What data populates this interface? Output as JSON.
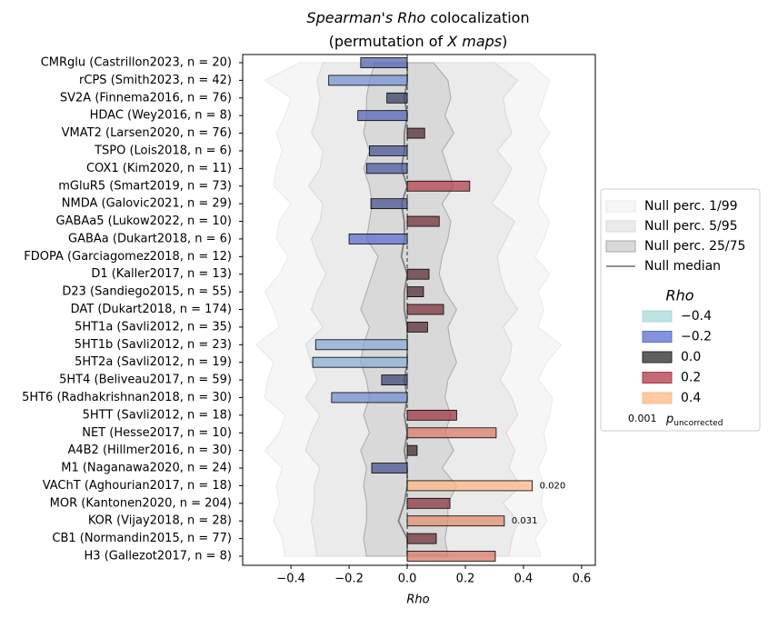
{
  "chart_data": {
    "type": "bar",
    "orientation": "horizontal",
    "title": {
      "line1": [
        {
          "text": "Spearman's Rho",
          "italic": true
        },
        {
          "text": " colocalization",
          "italic": false
        }
      ],
      "line2": [
        {
          "text": "(permutation of ",
          "italic": false
        },
        {
          "text": "X maps",
          "italic": true
        },
        {
          "text": ")",
          "italic": false
        }
      ]
    },
    "xlabel": "Rho",
    "categories": [
      "CMRglu (Castrillon2023, n = 20)",
      "rCPS (Smith2023, n = 42)",
      "SV2A (Finnema2016, n = 76)",
      "HDAC (Wey2016, n = 8)",
      "VMAT2 (Larsen2020, n = 76)",
      "TSPO (Lois2018, n = 6)",
      "COX1 (Kim2020, n = 11)",
      "mGluR5 (Smart2019, n = 73)",
      "NMDA (Galovic2021, n = 29)",
      "GABAa5 (Lukow2022, n = 10)",
      "GABAa (Dukart2018, n = 6)",
      "FDOPA (Garciagomez2018, n = 12)",
      "D1 (Kaller2017, n = 13)",
      "D23 (Sandiego2015, n = 55)",
      "DAT (Dukart2018, n = 174)",
      "5HT1a (Savli2012, n = 35)",
      "5HT1b (Savli2012, n = 23)",
      "5HT2a (Savli2012, n = 19)",
      "5HT4 (Beliveau2017, n = 59)",
      "5HT6 (Radhakrishnan2018, n = 30)",
      "5HTT (Savli2012, n = 18)",
      "NET (Hesse2017, n = 10)",
      "A4B2 (Hillmer2016, n = 30)",
      "M1 (Naganawa2020, n = 24)",
      "VAChT (Aghourian2017, n = 18)",
      "MOR (Kantonen2020, n = 204)",
      "KOR (Vijay2018, n = 28)",
      "CB1 (Normandin2015, n = 77)",
      "H3 (Gallezot2017, n = 8)"
    ],
    "values": [
      -0.16,
      -0.27,
      -0.07,
      -0.17,
      0.06,
      -0.13,
      -0.14,
      0.215,
      -0.125,
      0.11,
      -0.2,
      0.0,
      0.075,
      0.056,
      0.125,
      0.07,
      -0.315,
      -0.325,
      -0.088,
      -0.26,
      0.17,
      0.306,
      0.034,
      -0.122,
      0.43,
      0.147,
      0.334,
      0.1,
      0.303
    ],
    "p_value_labels": [
      null,
      null,
      null,
      null,
      null,
      null,
      null,
      null,
      null,
      null,
      null,
      null,
      null,
      null,
      null,
      null,
      null,
      null,
      null,
      null,
      null,
      null,
      null,
      null,
      "0.020",
      null,
      "0.031",
      null,
      null
    ],
    "p_values": [
      null,
      null,
      null,
      null,
      null,
      null,
      null,
      null,
      null,
      null,
      null,
      null,
      null,
      null,
      null,
      null,
      null,
      null,
      null,
      null,
      null,
      null,
      null,
      null,
      0.02,
      null,
      0.031,
      null,
      null
    ],
    "xlim": [
      -0.566,
      0.647
    ],
    "xticks": [
      {
        "value": -0.4,
        "label": "−0.4"
      },
      {
        "value": -0.2,
        "label": "−0.2"
      },
      {
        "value": 0.0,
        "label": "0.0"
      },
      0.2,
      0.4,
      0.6
    ],
    "null_bands": [
      {
        "name": "Null perc. 1/99",
        "color": "#f6f6f6",
        "edge": "#e8e8e8",
        "lower": [
          -0.37,
          -0.49,
          -0.4,
          -0.42,
          -0.45,
          -0.43,
          -0.45,
          -0.46,
          -0.4,
          -0.44,
          -0.45,
          -0.41,
          -0.44,
          -0.49,
          -0.46,
          -0.44,
          -0.52,
          -0.46,
          -0.48,
          -0.49,
          -0.42,
          -0.44,
          -0.49,
          -0.43,
          -0.45,
          -0.44,
          -0.46,
          -0.43,
          -0.42
        ],
        "upper": [
          0.42,
          0.49,
          0.47,
          0.45,
          0.49,
          0.45,
          0.48,
          0.46,
          0.45,
          0.49,
          0.47,
          0.44,
          0.49,
          0.45,
          0.47,
          0.45,
          0.53,
          0.48,
          0.45,
          0.5,
          0.49,
          0.47,
          0.48,
          0.45,
          0.47,
          0.46,
          0.48,
          0.44,
          0.46
        ]
      },
      {
        "name": "Null perc. 5/95",
        "color": "#ebebeb",
        "edge": "#d8d8d8",
        "lower": [
          -0.29,
          -0.31,
          -0.3,
          -0.31,
          -0.33,
          -0.29,
          -0.3,
          -0.34,
          -0.29,
          -0.3,
          -0.33,
          -0.31,
          -0.28,
          -0.31,
          -0.33,
          -0.29,
          -0.35,
          -0.33,
          -0.31,
          -0.35,
          -0.3,
          -0.33,
          -0.35,
          -0.3,
          -0.32,
          -0.32,
          -0.33,
          -0.32,
          -0.31
        ],
        "upper": [
          0.3,
          0.38,
          0.33,
          0.34,
          0.36,
          0.31,
          0.36,
          0.33,
          0.29,
          0.37,
          0.34,
          0.31,
          0.32,
          0.34,
          0.38,
          0.33,
          0.36,
          0.35,
          0.32,
          0.36,
          0.38,
          0.34,
          0.37,
          0.35,
          0.39,
          0.33,
          0.38,
          0.36,
          0.35
        ]
      },
      {
        "name": "Null perc. 25/75",
        "color": "#d9d9d9",
        "edge": "#a8a8a8",
        "lower": [
          -0.11,
          -0.13,
          -0.14,
          -0.14,
          -0.15,
          -0.13,
          -0.15,
          -0.13,
          -0.12,
          -0.13,
          -0.14,
          -0.1,
          -0.12,
          -0.14,
          -0.16,
          -0.13,
          -0.15,
          -0.16,
          -0.14,
          -0.13,
          -0.15,
          -0.13,
          -0.16,
          -0.14,
          -0.15,
          -0.14,
          -0.14,
          -0.15,
          -0.14
        ],
        "upper": [
          0.09,
          0.14,
          0.15,
          0.13,
          0.16,
          0.12,
          0.14,
          0.16,
          0.12,
          0.15,
          0.14,
          0.12,
          0.11,
          0.13,
          0.17,
          0.14,
          0.15,
          0.17,
          0.14,
          0.13,
          0.15,
          0.13,
          0.16,
          0.12,
          0.17,
          0.14,
          0.14,
          0.13,
          0.14
        ]
      }
    ],
    "null_median": {
      "name": "Null median",
      "color": "#808080",
      "values": [
        0.0,
        0.0,
        -0.01,
        0.0,
        -0.01,
        -0.01,
        -0.02,
        0.0,
        -0.02,
        -0.01,
        -0.01,
        -0.02,
        0.0,
        -0.01,
        -0.01,
        0.0,
        0.0,
        0.0,
        -0.01,
        0.0,
        -0.01,
        0.0,
        -0.01,
        0.0,
        0.0,
        -0.01,
        -0.03,
        0.0,
        0.0
      ]
    },
    "color_legend": {
      "title": "Rho",
      "entries": [
        {
          "value": -0.4,
          "label": "−0.4",
          "color": "#a8d8d8"
        },
        {
          "value": -0.2,
          "label": "−0.2",
          "color": "#5b6fd0"
        },
        {
          "value": 0.0,
          "label": "0.0",
          "color": "#2a2a2a"
        },
        {
          "value": 0.2,
          "label": "0.2",
          "color": "#b03848"
        },
        {
          "value": 0.4,
          "label": "0.4",
          "color": "#fdb884"
        }
      ]
    },
    "p_legend": {
      "example": "0.001",
      "symbol": "p",
      "subscript": "uncorrected"
    },
    "legend_position": "right"
  }
}
